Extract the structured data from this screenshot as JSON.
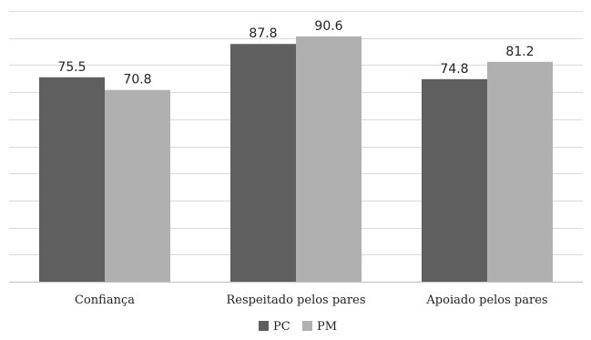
{
  "chart_data": {
    "type": "bar",
    "categories": [
      "Confiança",
      "Respeitado pelos pares",
      "Apoiado pelos pares"
    ],
    "series": [
      {
        "name": "PC",
        "values": [
          75.5,
          87.8,
          74.8
        ],
        "color": "#5f5f5f"
      },
      {
        "name": "PM",
        "values": [
          70.8,
          90.6,
          81.2
        ],
        "color": "#b0b0b0"
      }
    ],
    "ylim": [
      0,
      100
    ],
    "y_step": 10,
    "grid": true,
    "legend_position": "bottom-center",
    "data_labels": true,
    "xlabel": "",
    "ylabel": ""
  }
}
